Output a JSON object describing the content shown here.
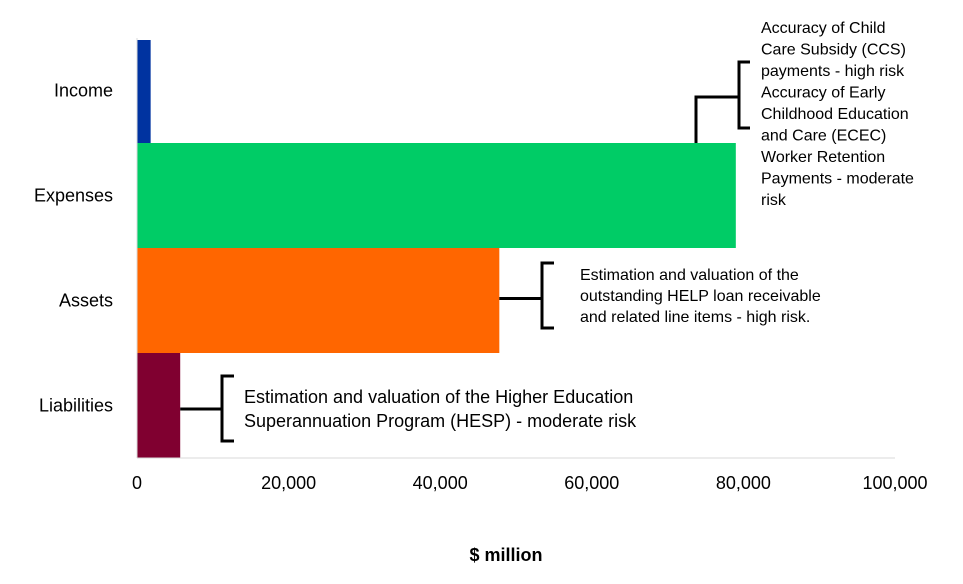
{
  "chart_data": {
    "type": "bar",
    "orientation": "horizontal",
    "categories": [
      "Income",
      "Expenses",
      "Assets",
      "Liabilities"
    ],
    "values": [
      1800,
      79000,
      47800,
      5700
    ],
    "colors": [
      "#0033a0",
      "#00cc66",
      "#ff6600",
      "#800030"
    ],
    "xlabel": "$ million",
    "xlim": [
      0,
      100000
    ],
    "xticks": [
      0,
      20000,
      40000,
      60000,
      80000,
      100000
    ],
    "xtick_labels": [
      "0",
      "20,000",
      "40,000",
      "60,000",
      "80,000",
      "100,000"
    ],
    "grid": false,
    "legend": "none",
    "annotations": [
      {
        "target": "Income and Expenses",
        "lines": [
          "Accuracy of Child",
          "Care Subsidy (CCS)",
          "payments - high risk",
          "Accuracy of Early",
          "Childhood Education",
          "and Care (ECEC)",
          "Worker Retention",
          "Payments - moderate",
          "risk"
        ]
      },
      {
        "target": "Assets",
        "lines": [
          "Estimation and valuation of the",
          "outstanding HELP loan receivable",
          "and related line items - high risk."
        ]
      },
      {
        "target": "Liabilities",
        "lines": [
          "Estimation and valuation of the Higher Education",
          "Superannuation Program (HESP) - moderate risk"
        ]
      }
    ]
  }
}
